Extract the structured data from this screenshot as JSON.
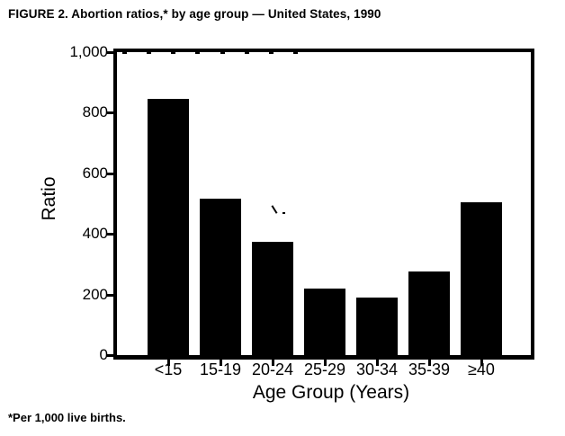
{
  "title": "FIGURE 2. Abortion ratios,* by age group — United States, 1990",
  "footnote": "*Per 1,000 live births.",
  "chart_data": {
    "type": "bar",
    "title": "FIGURE 2. Abortion ratios,* by age group — United States, 1990",
    "categories": [
      "<15",
      "15-19",
      "20-24",
      "25-29",
      "30-34",
      "35-39",
      "≥40"
    ],
    "values": [
      845,
      515,
      375,
      220,
      190,
      275,
      505
    ],
    "xlabel": "Age Group (Years)",
    "ylabel": "Ratio",
    "ylim": [
      0,
      1000
    ],
    "yticks": [
      0,
      200,
      400,
      600,
      800,
      1000
    ],
    "ytick_labels": [
      "0",
      "200",
      "400",
      "600",
      "800",
      "1,000"
    ],
    "bar_color": "#000000",
    "grid": false,
    "legend": false,
    "footnote": "*Per 1,000 live births."
  }
}
